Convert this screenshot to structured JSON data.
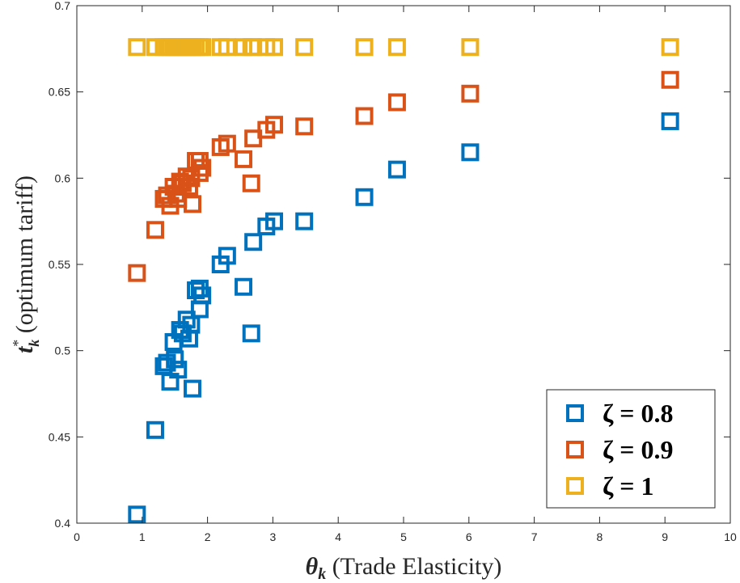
{
  "chart_data": {
    "type": "scatter",
    "xlim": [
      0,
      10
    ],
    "ylim": [
      0.4,
      0.7
    ],
    "xticks": [
      "0",
      "1",
      "2",
      "3",
      "4",
      "5",
      "6",
      "7",
      "8",
      "9",
      "10"
    ],
    "yticks": [
      "0.4",
      "0.45",
      "0.5",
      "0.55",
      "0.6",
      "0.65",
      "0.7"
    ],
    "xlabel": {
      "symbol": "θ",
      "sub": "k",
      "text": " (Trade Elasticity)"
    },
    "ylabel": {
      "symbol": "t",
      "sup": "*",
      "sub": "k",
      "text": " (optimum tariff)"
    },
    "legend_position": "bottom-right",
    "grid": false,
    "series": [
      {
        "name": "ζ = 0.8",
        "color": "#0072BD",
        "points": [
          [
            0.92,
            0.405
          ],
          [
            1.2,
            0.454
          ],
          [
            1.33,
            0.491
          ],
          [
            1.38,
            0.493
          ],
          [
            1.43,
            0.482
          ],
          [
            1.48,
            0.505
          ],
          [
            1.5,
            0.495
          ],
          [
            1.55,
            0.489
          ],
          [
            1.58,
            0.512
          ],
          [
            1.62,
            0.51
          ],
          [
            1.68,
            0.518
          ],
          [
            1.72,
            0.507
          ],
          [
            1.75,
            0.515
          ],
          [
            1.77,
            0.478
          ],
          [
            1.82,
            0.535
          ],
          [
            1.88,
            0.536
          ],
          [
            1.88,
            0.524
          ],
          [
            1.92,
            0.532
          ],
          [
            2.2,
            0.55
          ],
          [
            2.3,
            0.555
          ],
          [
            2.55,
            0.537
          ],
          [
            2.67,
            0.51
          ],
          [
            2.7,
            0.563
          ],
          [
            2.9,
            0.572
          ],
          [
            3.02,
            0.575
          ],
          [
            3.48,
            0.575
          ],
          [
            4.4,
            0.589
          ],
          [
            4.9,
            0.605
          ],
          [
            6.02,
            0.615
          ],
          [
            9.08,
            0.633
          ]
        ]
      },
      {
        "name": "ζ = 0.9",
        "color": "#D95319",
        "points": [
          [
            0.92,
            0.545
          ],
          [
            1.2,
            0.57
          ],
          [
            1.33,
            0.588
          ],
          [
            1.38,
            0.59
          ],
          [
            1.43,
            0.584
          ],
          [
            1.48,
            0.595
          ],
          [
            1.52,
            0.591
          ],
          [
            1.55,
            0.588
          ],
          [
            1.58,
            0.598
          ],
          [
            1.62,
            0.597
          ],
          [
            1.68,
            0.601
          ],
          [
            1.72,
            0.595
          ],
          [
            1.75,
            0.6
          ],
          [
            1.77,
            0.585
          ],
          [
            1.82,
            0.61
          ],
          [
            1.88,
            0.61
          ],
          [
            1.88,
            0.603
          ],
          [
            1.92,
            0.606
          ],
          [
            2.2,
            0.618
          ],
          [
            2.3,
            0.62
          ],
          [
            2.55,
            0.611
          ],
          [
            2.67,
            0.597
          ],
          [
            2.7,
            0.623
          ],
          [
            2.9,
            0.628
          ],
          [
            3.02,
            0.631
          ],
          [
            3.48,
            0.63
          ],
          [
            4.4,
            0.636
          ],
          [
            4.9,
            0.644
          ],
          [
            6.02,
            0.649
          ],
          [
            9.08,
            0.657
          ]
        ]
      },
      {
        "name": "ζ = 1",
        "color": "#EDB120",
        "points": [
          [
            0.92,
            0.676
          ],
          [
            1.2,
            0.676
          ],
          [
            1.33,
            0.676
          ],
          [
            1.38,
            0.676
          ],
          [
            1.43,
            0.676
          ],
          [
            1.48,
            0.676
          ],
          [
            1.52,
            0.676
          ],
          [
            1.55,
            0.676
          ],
          [
            1.58,
            0.676
          ],
          [
            1.62,
            0.676
          ],
          [
            1.68,
            0.676
          ],
          [
            1.72,
            0.676
          ],
          [
            1.75,
            0.676
          ],
          [
            1.77,
            0.676
          ],
          [
            1.82,
            0.676
          ],
          [
            1.88,
            0.676
          ],
          [
            1.92,
            0.676
          ],
          [
            2.2,
            0.676
          ],
          [
            2.3,
            0.676
          ],
          [
            2.55,
            0.676
          ],
          [
            2.67,
            0.676
          ],
          [
            2.7,
            0.676
          ],
          [
            2.9,
            0.676
          ],
          [
            3.02,
            0.676
          ],
          [
            3.48,
            0.676
          ],
          [
            4.4,
            0.676
          ],
          [
            4.9,
            0.676
          ],
          [
            6.02,
            0.676
          ],
          [
            9.08,
            0.676
          ]
        ]
      }
    ]
  }
}
